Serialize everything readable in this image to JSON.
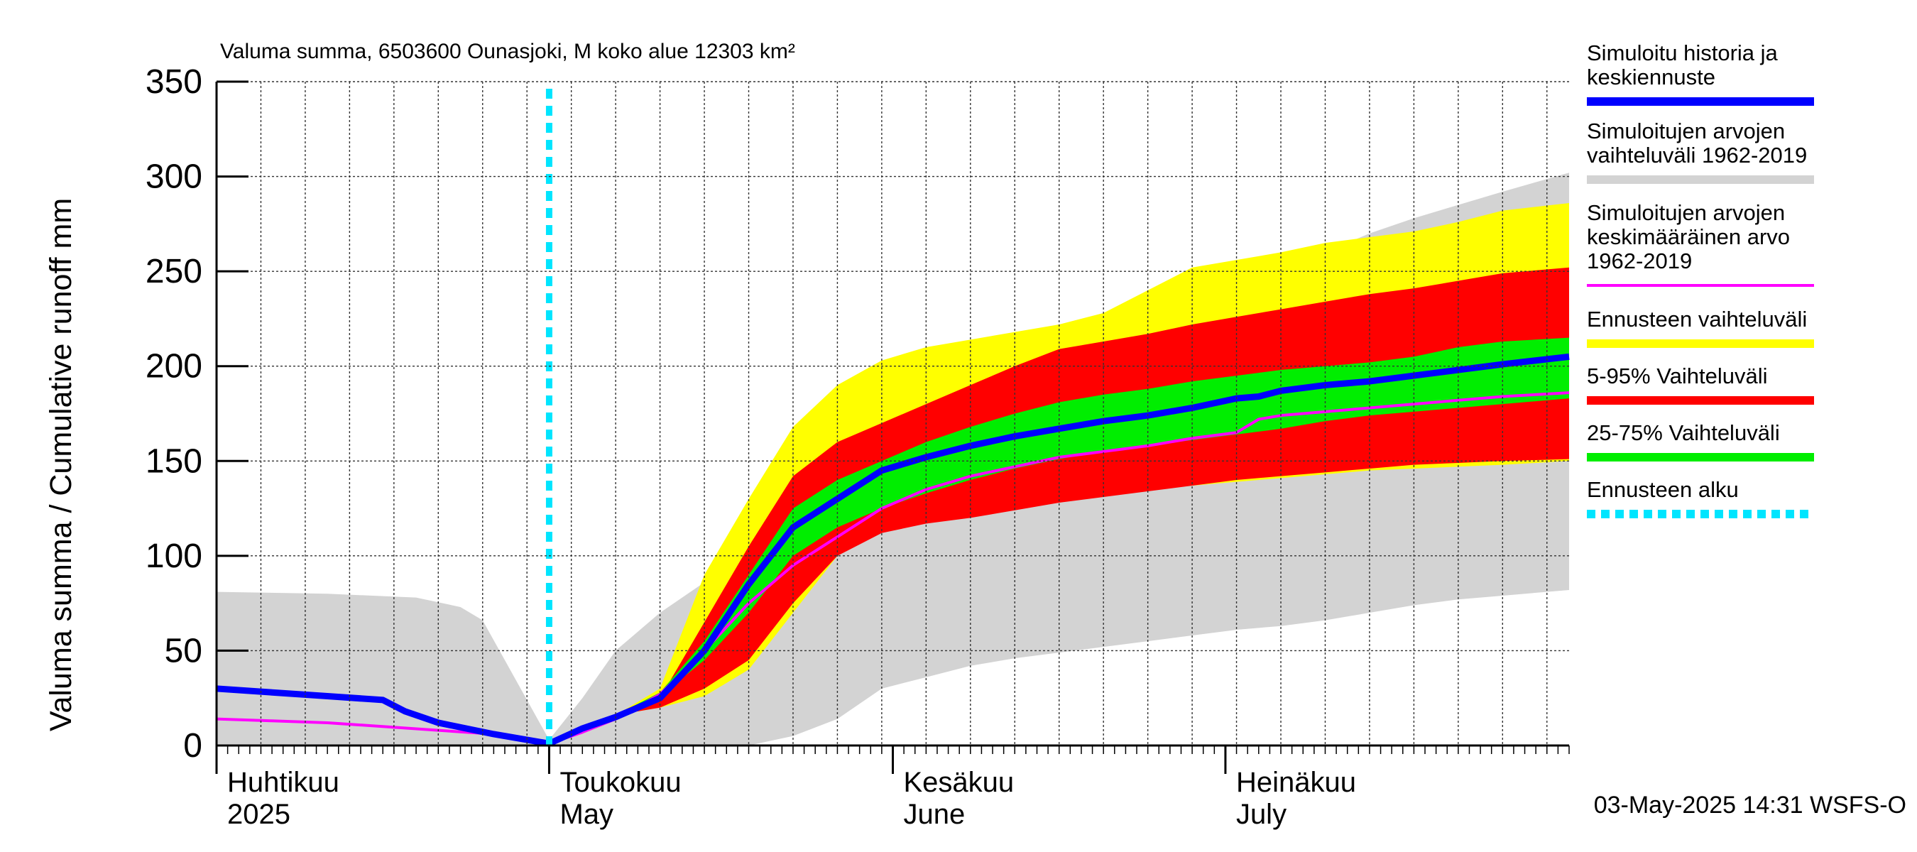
{
  "chart_data": {
    "type": "area",
    "title": "Valuma summa, 6503600 Ounasjoki, M koko alue 12303 km²",
    "ylabel": "Valuma summa / Cumulative runoff    mm",
    "ylim": [
      0,
      350
    ],
    "yticks": [
      0,
      50,
      100,
      150,
      200,
      250,
      300,
      350
    ],
    "x_range_days": [
      0,
      122
    ],
    "forecast_start_day": 30,
    "months": [
      {
        "fi": "Huhtikuu",
        "en": "2025",
        "day": 0
      },
      {
        "fi": "Toukokuu",
        "en": "May",
        "day": 30
      },
      {
        "fi": "Kesäkuu",
        "en": "June",
        "day": 61
      },
      {
        "fi": "Heinäkuu",
        "en": "July",
        "day": 91
      }
    ],
    "bands": {
      "history_range": {
        "upper": [
          [
            0,
            81
          ],
          [
            10,
            80
          ],
          [
            18,
            78
          ],
          [
            22,
            73
          ],
          [
            24,
            66
          ],
          [
            26,
            45
          ],
          [
            30,
            3
          ],
          [
            33,
            25
          ],
          [
            36,
            50
          ],
          [
            40,
            70
          ],
          [
            44,
            86
          ],
          [
            48,
            100
          ],
          [
            52,
            120
          ],
          [
            56,
            145
          ],
          [
            60,
            160
          ],
          [
            64,
            178
          ],
          [
            68,
            193
          ],
          [
            72,
            205
          ],
          [
            76,
            215
          ],
          [
            80,
            220
          ],
          [
            84,
            225
          ],
          [
            88,
            228
          ],
          [
            92,
            240
          ],
          [
            96,
            250
          ],
          [
            100,
            260
          ],
          [
            104,
            270
          ],
          [
            108,
            278
          ],
          [
            112,
            285
          ],
          [
            116,
            292
          ],
          [
            122,
            302
          ]
        ],
        "lower": [
          [
            0,
            0
          ],
          [
            48,
            0
          ],
          [
            52,
            5
          ],
          [
            56,
            14
          ],
          [
            60,
            30
          ],
          [
            64,
            36
          ],
          [
            68,
            42
          ],
          [
            72,
            46
          ],
          [
            76,
            49
          ],
          [
            80,
            52
          ],
          [
            84,
            55
          ],
          [
            88,
            58
          ],
          [
            92,
            61
          ],
          [
            96,
            63
          ],
          [
            100,
            66
          ],
          [
            104,
            70
          ],
          [
            108,
            74
          ],
          [
            112,
            77
          ],
          [
            116,
            79
          ],
          [
            122,
            82
          ]
        ]
      },
      "forecast_range": {
        "upper": [
          [
            30,
            1
          ],
          [
            33,
            10
          ],
          [
            36,
            16
          ],
          [
            40,
            30
          ],
          [
            44,
            90
          ],
          [
            48,
            130
          ],
          [
            52,
            168
          ],
          [
            56,
            190
          ],
          [
            60,
            203
          ],
          [
            64,
            210
          ],
          [
            68,
            214
          ],
          [
            72,
            218
          ],
          [
            76,
            222
          ],
          [
            80,
            228
          ],
          [
            84,
            240
          ],
          [
            88,
            252
          ],
          [
            92,
            256
          ],
          [
            96,
            260
          ],
          [
            100,
            265
          ],
          [
            104,
            268
          ],
          [
            108,
            271
          ],
          [
            112,
            276
          ],
          [
            116,
            282
          ],
          [
            122,
            286
          ]
        ],
        "lower": [
          [
            30,
            1
          ],
          [
            33,
            10
          ],
          [
            36,
            16
          ],
          [
            40,
            20
          ],
          [
            44,
            26
          ],
          [
            48,
            40
          ],
          [
            52,
            70
          ],
          [
            56,
            100
          ],
          [
            60,
            113
          ],
          [
            64,
            118
          ],
          [
            68,
            122
          ],
          [
            72,
            126
          ],
          [
            76,
            129
          ],
          [
            80,
            132
          ],
          [
            84,
            135
          ],
          [
            88,
            137
          ],
          [
            92,
            139
          ],
          [
            96,
            141
          ],
          [
            100,
            143
          ],
          [
            104,
            145
          ],
          [
            108,
            146
          ],
          [
            112,
            147
          ],
          [
            116,
            148
          ],
          [
            122,
            150
          ]
        ]
      },
      "p5_95": {
        "upper": [
          [
            30,
            1
          ],
          [
            33,
            10
          ],
          [
            36,
            16
          ],
          [
            40,
            25
          ],
          [
            44,
            65
          ],
          [
            48,
            105
          ],
          [
            52,
            142
          ],
          [
            56,
            160
          ],
          [
            60,
            170
          ],
          [
            64,
            180
          ],
          [
            68,
            190
          ],
          [
            72,
            200
          ],
          [
            76,
            209
          ],
          [
            80,
            213
          ],
          [
            84,
            217
          ],
          [
            88,
            222
          ],
          [
            92,
            226
          ],
          [
            96,
            230
          ],
          [
            100,
            234
          ],
          [
            104,
            238
          ],
          [
            108,
            241
          ],
          [
            112,
            245
          ],
          [
            116,
            249
          ],
          [
            122,
            252
          ]
        ],
        "lower": [
          [
            30,
            1
          ],
          [
            33,
            10
          ],
          [
            36,
            16
          ],
          [
            40,
            20
          ],
          [
            44,
            30
          ],
          [
            48,
            45
          ],
          [
            52,
            75
          ],
          [
            56,
            100
          ],
          [
            60,
            112
          ],
          [
            64,
            117
          ],
          [
            68,
            120
          ],
          [
            72,
            124
          ],
          [
            76,
            128
          ],
          [
            80,
            131
          ],
          [
            84,
            134
          ],
          [
            88,
            137
          ],
          [
            92,
            140
          ],
          [
            96,
            142
          ],
          [
            100,
            144
          ],
          [
            104,
            146
          ],
          [
            108,
            148
          ],
          [
            112,
            149
          ],
          [
            116,
            150
          ],
          [
            122,
            151
          ]
        ]
      },
      "p25_75": {
        "upper": [
          [
            30,
            1
          ],
          [
            33,
            10
          ],
          [
            36,
            16
          ],
          [
            40,
            28
          ],
          [
            44,
            55
          ],
          [
            48,
            90
          ],
          [
            52,
            125
          ],
          [
            56,
            140
          ],
          [
            60,
            150
          ],
          [
            64,
            160
          ],
          [
            68,
            168
          ],
          [
            72,
            175
          ],
          [
            76,
            181
          ],
          [
            80,
            185
          ],
          [
            84,
            188
          ],
          [
            88,
            192
          ],
          [
            92,
            195
          ],
          [
            96,
            198
          ],
          [
            100,
            200
          ],
          [
            104,
            202
          ],
          [
            108,
            205
          ],
          [
            112,
            210
          ],
          [
            116,
            213
          ],
          [
            122,
            215
          ]
        ],
        "lower": [
          [
            30,
            1
          ],
          [
            33,
            10
          ],
          [
            36,
            16
          ],
          [
            40,
            26
          ],
          [
            44,
            45
          ],
          [
            48,
            70
          ],
          [
            52,
            100
          ],
          [
            56,
            115
          ],
          [
            60,
            125
          ],
          [
            64,
            133
          ],
          [
            68,
            140
          ],
          [
            72,
            146
          ],
          [
            76,
            151
          ],
          [
            80,
            155
          ],
          [
            84,
            158
          ],
          [
            88,
            161
          ],
          [
            92,
            164
          ],
          [
            96,
            167
          ],
          [
            100,
            171
          ],
          [
            104,
            174
          ],
          [
            108,
            176
          ],
          [
            112,
            178
          ],
          [
            116,
            180
          ],
          [
            122,
            183
          ]
        ]
      }
    },
    "series": [
      {
        "name": "Simuloitujen arvojen keskimääräinen arvo 1962-2019",
        "color": "#ff00ff",
        "points": [
          [
            0,
            14
          ],
          [
            5,
            13
          ],
          [
            10,
            12
          ],
          [
            15,
            10
          ],
          [
            20,
            8
          ],
          [
            25,
            6
          ],
          [
            30,
            1
          ],
          [
            33,
            7
          ],
          [
            36,
            14
          ],
          [
            40,
            27
          ],
          [
            44,
            50
          ],
          [
            48,
            75
          ],
          [
            52,
            95
          ],
          [
            56,
            110
          ],
          [
            60,
            125
          ],
          [
            64,
            135
          ],
          [
            68,
            142
          ],
          [
            72,
            147
          ],
          [
            76,
            152
          ],
          [
            80,
            155
          ],
          [
            84,
            158
          ],
          [
            88,
            162
          ],
          [
            92,
            165
          ],
          [
            94,
            172
          ],
          [
            96,
            174
          ],
          [
            100,
            176
          ],
          [
            104,
            178
          ],
          [
            108,
            180
          ],
          [
            112,
            182
          ],
          [
            116,
            184
          ],
          [
            122,
            186
          ]
        ]
      },
      {
        "name": "Simuloitu historia ja keskiennuste",
        "color": "#0000ff",
        "points": [
          [
            0,
            30
          ],
          [
            5,
            28
          ],
          [
            10,
            26
          ],
          [
            15,
            24
          ],
          [
            17,
            18
          ],
          [
            20,
            12
          ],
          [
            25,
            6
          ],
          [
            30,
            1
          ],
          [
            33,
            9
          ],
          [
            36,
            15
          ],
          [
            40,
            25
          ],
          [
            44,
            50
          ],
          [
            48,
            85
          ],
          [
            52,
            115
          ],
          [
            56,
            130
          ],
          [
            60,
            145
          ],
          [
            64,
            152
          ],
          [
            68,
            158
          ],
          [
            72,
            163
          ],
          [
            76,
            167
          ],
          [
            80,
            171
          ],
          [
            84,
            174
          ],
          [
            88,
            178
          ],
          [
            92,
            183
          ],
          [
            94,
            184
          ],
          [
            96,
            187
          ],
          [
            100,
            190
          ],
          [
            104,
            192
          ],
          [
            108,
            195
          ],
          [
            112,
            198
          ],
          [
            116,
            201
          ],
          [
            122,
            205
          ]
        ]
      }
    ],
    "legend": [
      {
        "text": "Simuloitu historia ja keskiennuste",
        "color": "#0000ff",
        "style": "solid"
      },
      {
        "text": "Simuloitujen arvojen vaihteluväli 1962-2019",
        "color": "#d3d3d3",
        "style": "solid"
      },
      {
        "text": "Simuloitujen arvojen keskimääräinen arvo 1962-2019",
        "color": "#ff00ff",
        "style": "thin"
      },
      {
        "text": "Ennusteen vaihteluväli",
        "color": "#ffff00",
        "style": "solid"
      },
      {
        "text": "5-95% Vaihteluväli",
        "color": "#ff0000",
        "style": "solid"
      },
      {
        "text": "25-75% Vaihteluväli",
        "color": "#00ee00",
        "style": "solid"
      },
      {
        "text": "Ennusteen alku",
        "color": "#00e5ff",
        "style": "dashed"
      }
    ],
    "footer": "03-May-2025 14:31 WSFS-O"
  }
}
